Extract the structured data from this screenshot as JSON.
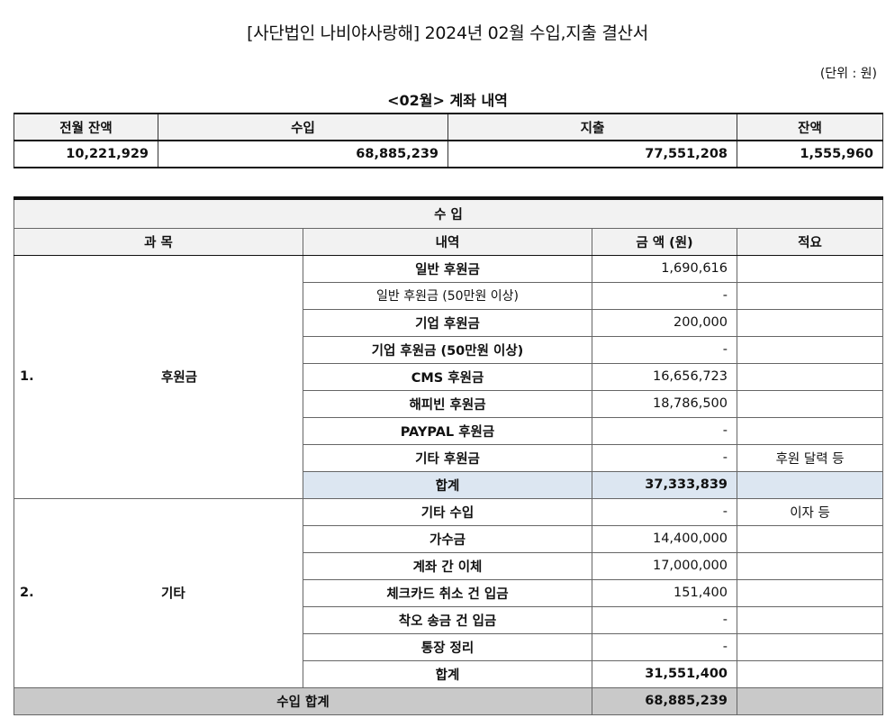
{
  "title": "[사단법인 나비야사랑해] 2024년 02월 수입,지출 결산서",
  "unit": "(단위 : 원)",
  "account_summary": {
    "title": "<02월> 계좌 내역",
    "headers": [
      "전월 잔액",
      "수입",
      "지출",
      "잔액"
    ],
    "values": [
      "10,221,929",
      "68,885,239",
      "77,551,208",
      "1,555,960"
    ]
  },
  "income": {
    "section_title": "수 입",
    "headers": [
      "과 목",
      "내역",
      "금 액 (원)",
      "적요"
    ],
    "groups": [
      {
        "number": "1.",
        "name": "후원금",
        "rows": [
          {
            "item": "일반 후원금",
            "amount": "1,690,616",
            "note": ""
          },
          {
            "item": "일반 후원금 (50만원 이상)",
            "amount": "-",
            "note": ""
          },
          {
            "item": "기업 후원금",
            "amount": "200,000",
            "note": ""
          },
          {
            "item": "기업 후원금 (50만원 이상)",
            "amount": "-",
            "note": ""
          },
          {
            "item": "CMS 후원금",
            "amount": "16,656,723",
            "note": ""
          },
          {
            "item": "해피빈 후원금",
            "amount": "18,786,500",
            "note": ""
          },
          {
            "item": "PAYPAL 후원금",
            "amount": "-",
            "note": ""
          },
          {
            "item": "기타 후원금",
            "amount": "-",
            "note": "후원 달력 등"
          }
        ],
        "subtotal_label": "합계",
        "subtotal": "37,333,839"
      },
      {
        "number": "2.",
        "name": "기타",
        "rows": [
          {
            "item": "기타 수입",
            "amount": "-",
            "note": "이자 등"
          },
          {
            "item": "가수금",
            "amount": "14,400,000",
            "note": ""
          },
          {
            "item": "계좌 간 이체",
            "amount": "17,000,000",
            "note": ""
          },
          {
            "item": "체크카드 취소 건 입금",
            "amount": "151,400",
            "note": ""
          },
          {
            "item": "착오 송금 건 입금",
            "amount": "-",
            "note": ""
          },
          {
            "item": "통장 정리",
            "amount": "-",
            "note": ""
          }
        ],
        "subtotal_label": "합계",
        "subtotal": "31,551,400"
      }
    ],
    "total_label": "수입 합계",
    "total": "68,885,239"
  }
}
